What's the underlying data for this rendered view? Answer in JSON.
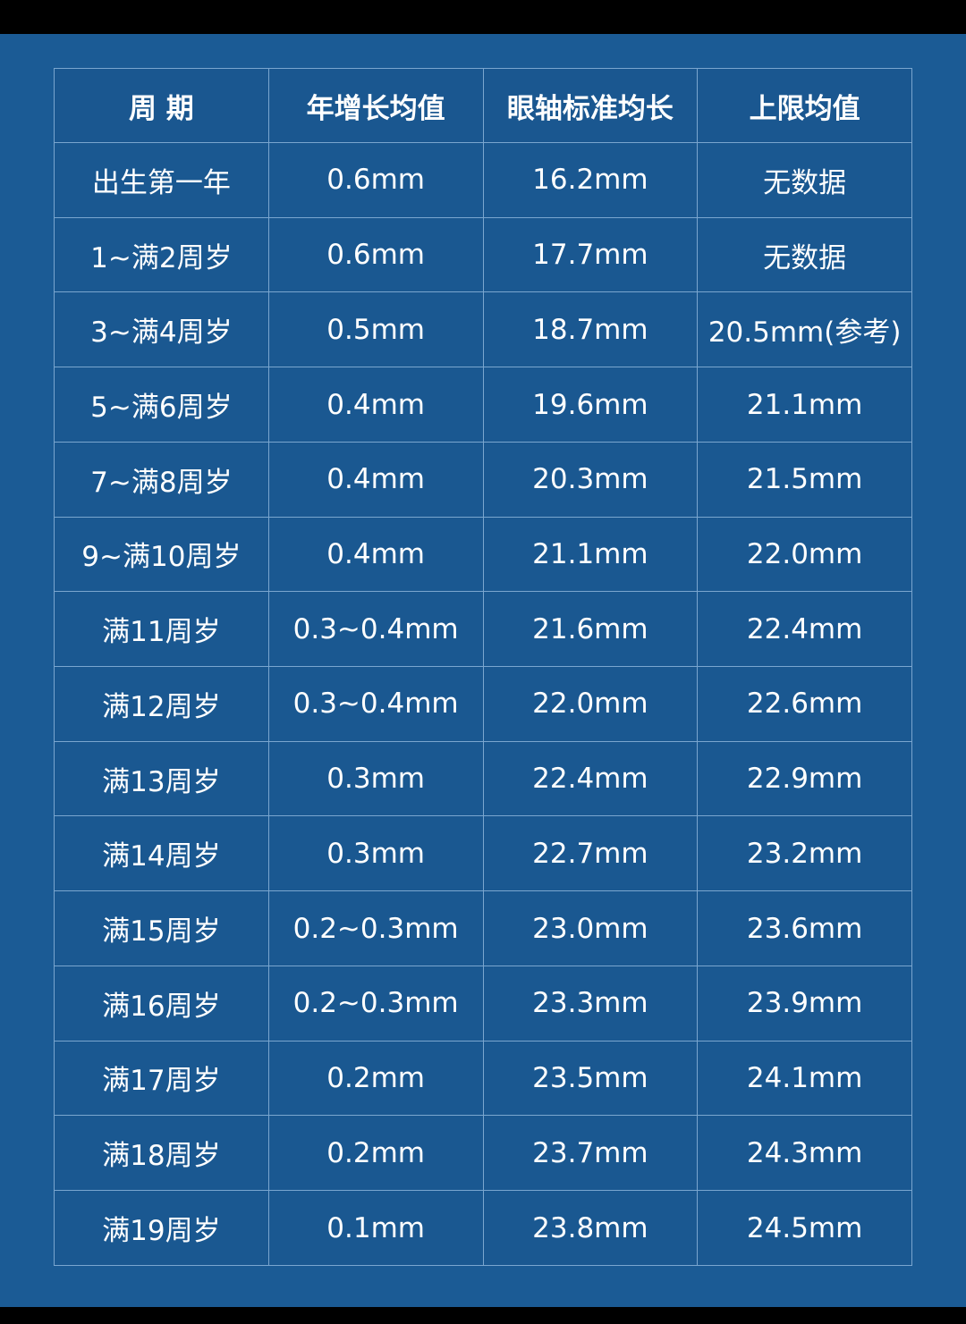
{
  "table": {
    "header": [
      "周 期",
      "年增长均值",
      "眼轴标准均长",
      "上限均值"
    ],
    "rows": [
      [
        "出生第一年",
        "0.6mm",
        "16.2mm",
        "无数据"
      ],
      [
        "1~满2周岁",
        "0.6mm",
        "17.7mm",
        "无数据"
      ],
      [
        "3~满4周岁",
        "0.5mm",
        "18.7mm",
        "20.5mm(参考)"
      ],
      [
        "5~满6周岁",
        "0.4mm",
        "19.6mm",
        "21.1mm"
      ],
      [
        "7~满8周岁",
        "0.4mm",
        "20.3mm",
        "21.5mm"
      ],
      [
        "9~满10周岁",
        "0.4mm",
        "21.1mm",
        "22.0mm"
      ],
      [
        "满11周岁",
        "0.3~0.4mm",
        "21.6mm",
        "22.4mm"
      ],
      [
        "满12周岁",
        "0.3~0.4mm",
        "22.0mm",
        "22.6mm"
      ],
      [
        "满13周岁",
        "0.3mm",
        "22.4mm",
        "22.9mm"
      ],
      [
        "满14周岁",
        "0.3mm",
        "22.7mm",
        "23.2mm"
      ],
      [
        "满15周岁",
        "0.2~0.3mm",
        "23.0mm",
        "23.6mm"
      ],
      [
        "满16周岁",
        "0.2~0.3mm",
        "23.3mm",
        "23.9mm"
      ],
      [
        "满17周岁",
        "0.2mm",
        "23.5mm",
        "24.1mm"
      ],
      [
        "满18周岁",
        "0.2mm",
        "23.7mm",
        "24.3mm"
      ],
      [
        "满19周岁",
        "0.1mm",
        "23.8mm",
        "24.5mm"
      ]
    ]
  }
}
